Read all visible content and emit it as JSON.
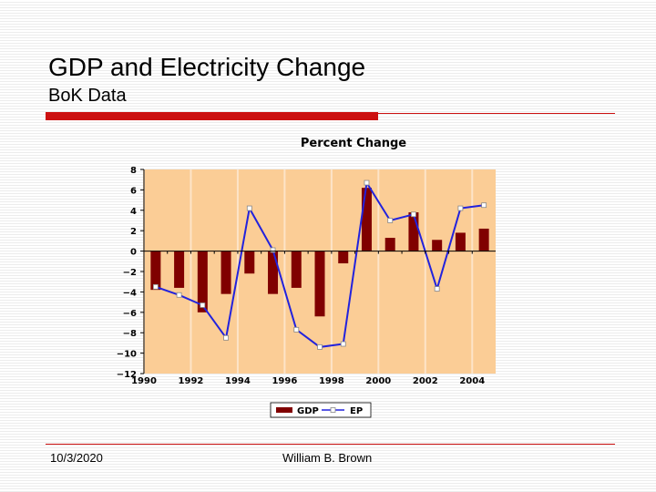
{
  "slide": {
    "title": "GDP and Electricity Change",
    "subtitle": "BoK  Data",
    "footer_date": "10/3/2020",
    "footer_author": "William B. Brown"
  },
  "colors": {
    "accent": "#cc1111",
    "plot_background": "#fbcd96",
    "gdp_bar": "#800000",
    "ep_line": "#2222dd",
    "gridline": "#fde4c8"
  },
  "chart_data": {
    "type": "bar",
    "title": "Percent Change",
    "x": [
      1990,
      1991,
      1992,
      1993,
      1994,
      1995,
      1996,
      1997,
      1998,
      1999,
      2000,
      2001,
      2002,
      2003,
      2004
    ],
    "xticks": [
      "1990",
      "1992",
      "1994",
      "1996",
      "1998",
      "2000",
      "2002",
      "2004"
    ],
    "yticks": [
      "8",
      "6",
      "4",
      "2",
      "0",
      "−2",
      "−4",
      "−6",
      "−8",
      "−10",
      "−12"
    ],
    "ylim": [
      -12,
      8
    ],
    "xlim": [
      1990,
      2005
    ],
    "series": [
      {
        "name": "GDP",
        "type": "bar",
        "values": [
          -3.8,
          -3.6,
          -6.0,
          -4.2,
          -2.2,
          -4.2,
          -3.6,
          -6.4,
          -1.2,
          6.2,
          1.3,
          3.8,
          1.1,
          1.8,
          2.2
        ]
      },
      {
        "name": "EP",
        "type": "line",
        "values": [
          -3.5,
          -4.3,
          -5.3,
          -8.5,
          4.2,
          0.1,
          -7.7,
          -9.4,
          -9.1,
          6.7,
          3.0,
          3.6,
          -3.7,
          4.2,
          4.5
        ]
      }
    ],
    "legend": [
      "GDP",
      "EP"
    ],
    "legend_position": "bottom",
    "grid": "vertical"
  }
}
